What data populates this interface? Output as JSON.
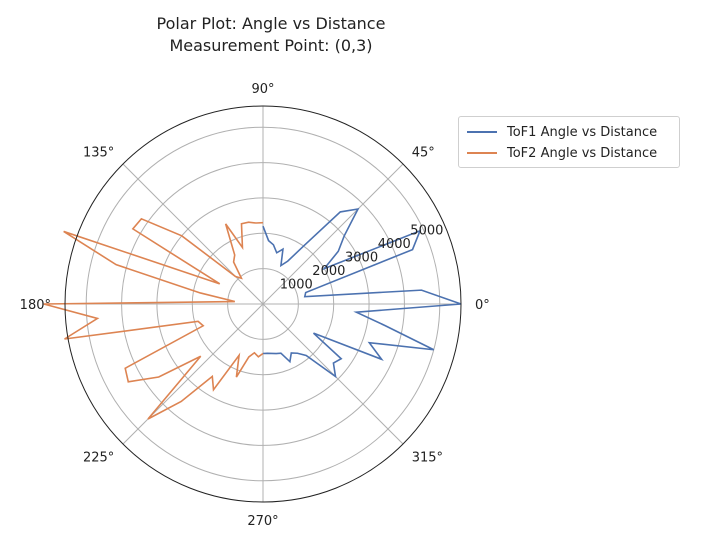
{
  "chart_data": {
    "type": "line",
    "projection": "polar",
    "title": "Polar Plot: Angle vs Distance",
    "subtitle": "Measurement Point: (0,3)",
    "angle_unit": "degrees",
    "angle_ticks": [
      "0°",
      "45°",
      "90°",
      "135°",
      "180°",
      "225°",
      "270°",
      "315°"
    ],
    "radial_ticks": [
      "1000",
      "2000",
      "3000",
      "4000",
      "5000"
    ],
    "rlim": [
      0,
      5600
    ],
    "grid": true,
    "legend": "upper-right-outside",
    "series": [
      {
        "name": "ToF1 Angle vs Distance",
        "color": "#4c72b0",
        "theta": [
          -90,
          -85,
          -80,
          -75,
          -70,
          -65,
          -60,
          -55,
          -50,
          -45,
          -40,
          -35,
          -30,
          -25,
          -20,
          -15,
          -10,
          -5,
          0,
          5,
          10,
          15,
          20,
          25,
          30,
          35,
          40,
          45,
          50,
          55,
          60,
          65,
          70,
          75,
          80,
          85,
          90
        ],
        "r": [
          1400,
          1400,
          1420,
          1450,
          1480,
          1800,
          1600,
          1700,
          1900,
          2900,
          2600,
          2700,
          1650,
          3700,
          3200,
          5000,
          3500,
          2650,
          5600,
          4500,
          1200,
          1250,
          4500,
          4900,
          2000,
          2600,
          3000,
          3800,
          3400,
          2000,
          1400,
          1200,
          1650,
          1500,
          1700,
          1800,
          2200
        ]
      },
      {
        "name": "ToF2 Angle vs Distance",
        "color": "#dd8452",
        "theta": [
          90,
          95,
          100,
          105,
          110,
          115,
          120,
          125,
          130,
          135,
          140,
          145,
          150,
          155,
          160,
          165,
          170,
          175,
          180,
          185,
          190,
          195,
          200,
          205,
          210,
          215,
          220,
          225,
          230,
          235,
          240,
          245,
          250,
          255,
          260,
          265,
          270
        ],
        "r": [
          2300,
          2300,
          2350,
          2350,
          1700,
          2500,
          1600,
          1450,
          950,
          1100,
          3000,
          4200,
          4250,
          1350,
          6000,
          4300,
          1800,
          800,
          6200,
          4700,
          5700,
          1900,
          1800,
          4300,
          4400,
          3600,
          2300,
          4600,
          3600,
          2500,
          2800,
          1600,
          2200,
          1550,
          1400,
          1500,
          1400
        ]
      }
    ]
  }
}
